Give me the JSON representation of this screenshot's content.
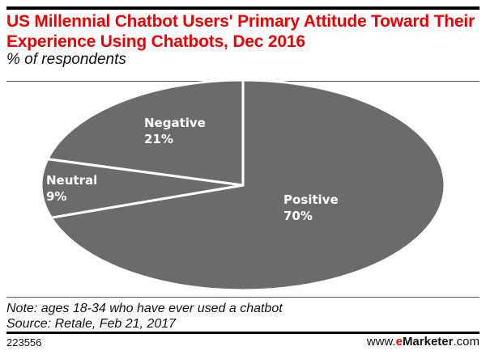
{
  "chart_data": {
    "type": "pie",
    "title": "US Millennial Chatbot Users' Primary Attitude Toward Their Experience Using Chatbots, Dec 2016",
    "subtitle": "% of respondents",
    "slices": [
      {
        "label": "Positive",
        "value": 70,
        "value_label": "70%"
      },
      {
        "label": "Neutral",
        "value": 9,
        "value_label": "9%"
      },
      {
        "label": "Negative",
        "value": 21,
        "value_label": "21%"
      }
    ],
    "colors": {
      "slice": "#6b6b6b",
      "separator": "#ffffff",
      "title": "#ee0000"
    }
  },
  "footer": {
    "note": "Note: ages 18-34 who have ever used a chatbot",
    "source": "Source: Retale, Feb 21, 2017",
    "id": "223556",
    "brand_prefix": "www.",
    "brand_e": "e",
    "brand_name": "Marketer",
    "brand_suffix": ".com"
  }
}
